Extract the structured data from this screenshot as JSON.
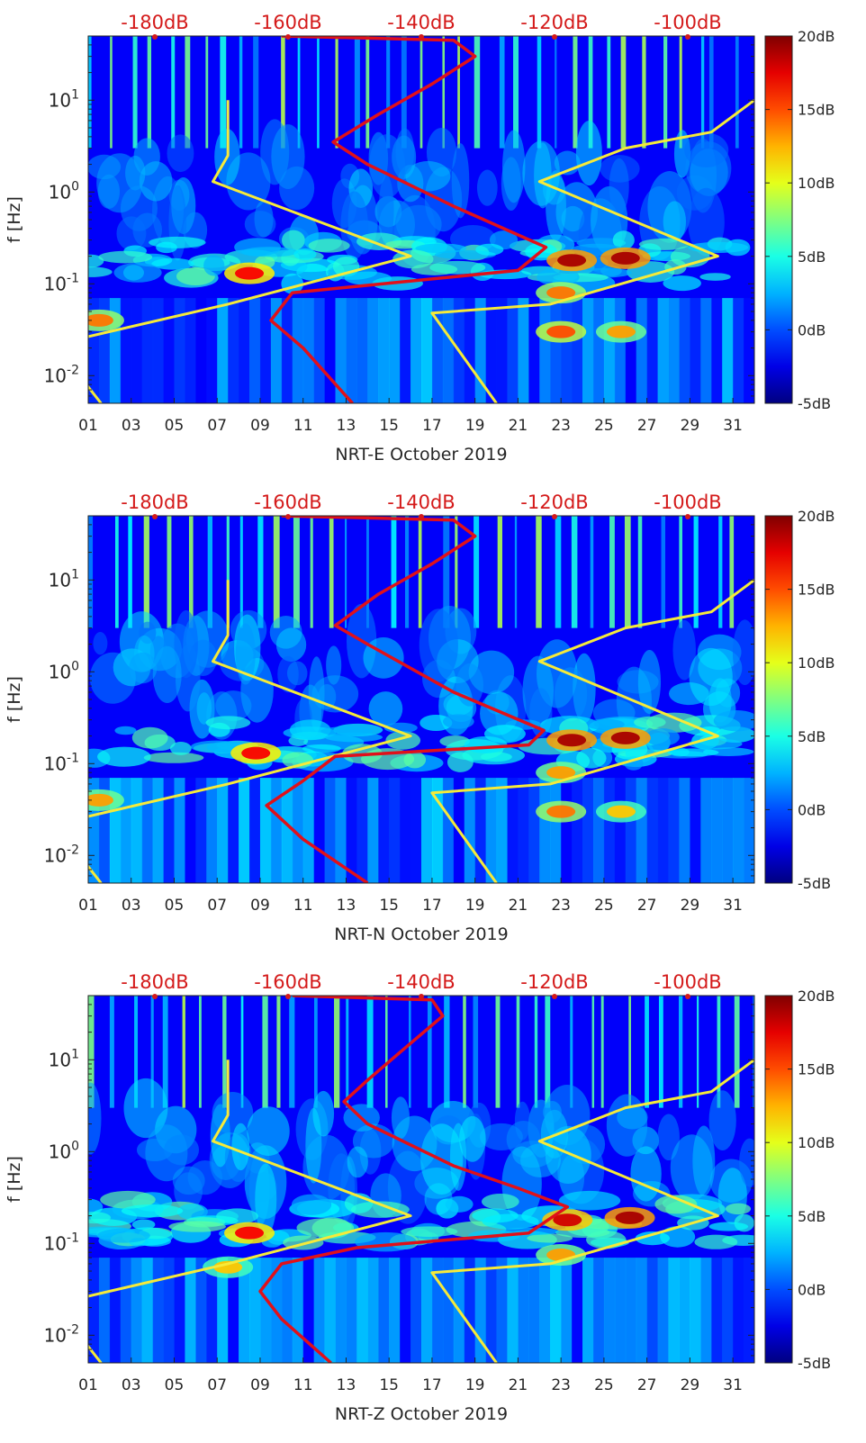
{
  "chart_data": [
    {
      "type": "heatmap",
      "subtype": "spectrogram",
      "title": "",
      "station": "NRT-E",
      "xlabel": "NRT-E October 2019",
      "ylabel": "f [Hz]",
      "xlim": [
        1,
        32
      ],
      "x_ticks": [
        "01",
        "03",
        "05",
        "07",
        "09",
        "11",
        "13",
        "15",
        "17",
        "19",
        "21",
        "23",
        "25",
        "27",
        "29",
        "31"
      ],
      "ylim": [
        0.005,
        50
      ],
      "y_scale": "log",
      "y_ticks": [
        {
          "value": 0.01,
          "base": "10",
          "exp": "-2"
        },
        {
          "value": 0.1,
          "base": "10",
          "exp": "-1"
        },
        {
          "value": 1,
          "base": "10",
          "exp": "0"
        },
        {
          "value": 10,
          "base": "10",
          "exp": "1"
        }
      ],
      "top_axis": {
        "values": [
          -180,
          -160,
          -140,
          -120,
          -100
        ],
        "labels": [
          "-180dB",
          "-160dB",
          "-140dB",
          "-120dB",
          "-100dB"
        ]
      },
      "colorbar": {
        "min": -5,
        "max": 20,
        "ticks": [
          "20dB",
          "15dB",
          "10dB",
          "5dB",
          "0dB",
          "-5dB"
        ],
        "colormap": "jet"
      },
      "hot_spots": [
        {
          "day": 8.5,
          "f": 0.13,
          "level": 17
        },
        {
          "day": 23.5,
          "f": 0.18,
          "level": 19
        },
        {
          "day": 26,
          "f": 0.19,
          "level": 19
        },
        {
          "day": 23,
          "f": 0.08,
          "level": 14
        },
        {
          "day": 1.5,
          "f": 0.04,
          "level": 14
        },
        {
          "day": 23,
          "f": 0.03,
          "level": 15
        },
        {
          "day": 25.8,
          "f": 0.03,
          "level": 13
        }
      ],
      "series": [
        {
          "name": "noise model (yellow)",
          "color": "#f5ea3a",
          "points": [
            [
              1.6,
              0.005
            ],
            [
              0,
              0.015
            ],
            [
              0.5,
              0.025
            ],
            [
              7.5,
              0.06
            ],
            [
              16,
              0.2
            ],
            [
              6.8,
              1.3
            ],
            [
              7.5,
              2.5
            ],
            [
              7.5,
              10
            ]
          ]
        },
        {
          "name": "noise model (yellow)",
          "color": "#f5ea3a",
          "points": [
            [
              20,
              0.005
            ],
            [
              17,
              0.048
            ],
            [
              22.5,
              0.06
            ],
            [
              30.3,
              0.2
            ],
            [
              22,
              1.3
            ],
            [
              26,
              3
            ],
            [
              30,
              4.5
            ],
            [
              32,
              10
            ]
          ]
        },
        {
          "name": "PSD (red)",
          "color": "#e0101a",
          "points": [
            [
              13.3,
              0.005
            ],
            [
              11,
              0.02
            ],
            [
              9.5,
              0.04
            ],
            [
              10.5,
              0.08
            ],
            [
              21,
              0.14
            ],
            [
              22.3,
              0.25
            ],
            [
              18,
              0.7
            ],
            [
              14,
              2
            ],
            [
              12.4,
              3.5
            ],
            [
              14.5,
              7
            ],
            [
              17,
              15
            ],
            [
              19,
              30
            ],
            [
              18,
              45
            ],
            [
              10,
              50
            ]
          ]
        }
      ]
    },
    {
      "type": "heatmap",
      "subtype": "spectrogram",
      "title": "",
      "station": "NRT-N",
      "xlabel": "NRT-N October 2019",
      "ylabel": "f [Hz]",
      "xlim": [
        1,
        32
      ],
      "x_ticks": [
        "01",
        "03",
        "05",
        "07",
        "09",
        "11",
        "13",
        "15",
        "17",
        "19",
        "21",
        "23",
        "25",
        "27",
        "29",
        "31"
      ],
      "ylim": [
        0.005,
        50
      ],
      "y_scale": "log",
      "y_ticks": [
        {
          "value": 0.01,
          "base": "10",
          "exp": "-2"
        },
        {
          "value": 0.1,
          "base": "10",
          "exp": "-1"
        },
        {
          "value": 1,
          "base": "10",
          "exp": "0"
        },
        {
          "value": 10,
          "base": "10",
          "exp": "1"
        }
      ],
      "top_axis": {
        "values": [
          -180,
          -160,
          -140,
          -120,
          -100
        ],
        "labels": [
          "-180dB",
          "-160dB",
          "-140dB",
          "-120dB",
          "-100dB"
        ]
      },
      "colorbar": {
        "min": -5,
        "max": 20,
        "ticks": [
          "20dB",
          "15dB",
          "10dB",
          "5dB",
          "0dB",
          "-5dB"
        ],
        "colormap": "jet"
      },
      "hot_spots": [
        {
          "day": 8.8,
          "f": 0.13,
          "level": 17
        },
        {
          "day": 23.5,
          "f": 0.18,
          "level": 19
        },
        {
          "day": 26,
          "f": 0.19,
          "level": 19
        },
        {
          "day": 23,
          "f": 0.08,
          "level": 13
        },
        {
          "day": 1.5,
          "f": 0.04,
          "level": 13
        },
        {
          "day": 23,
          "f": 0.03,
          "level": 14
        },
        {
          "day": 25.8,
          "f": 0.03,
          "level": 12
        }
      ],
      "series": [
        {
          "name": "noise model (yellow)",
          "color": "#f5ea3a",
          "points": [
            [
              1.6,
              0.005
            ],
            [
              0,
              0.015
            ],
            [
              0.5,
              0.025
            ],
            [
              7.5,
              0.06
            ],
            [
              16,
              0.2
            ],
            [
              6.8,
              1.3
            ],
            [
              7.5,
              2.5
            ],
            [
              7.5,
              10
            ]
          ]
        },
        {
          "name": "noise model (yellow)",
          "color": "#f5ea3a",
          "points": [
            [
              20,
              0.005
            ],
            [
              17,
              0.048
            ],
            [
              22.5,
              0.06
            ],
            [
              30.3,
              0.2
            ],
            [
              22,
              1.3
            ],
            [
              26,
              3
            ],
            [
              30,
              4.5
            ],
            [
              32,
              10
            ]
          ]
        },
        {
          "name": "PSD (red)",
          "color": "#e0101a",
          "points": [
            [
              14,
              0.005
            ],
            [
              11,
              0.015
            ],
            [
              9.3,
              0.035
            ],
            [
              11,
              0.065
            ],
            [
              12.5,
              0.12
            ],
            [
              21.5,
              0.16
            ],
            [
              22.2,
              0.23
            ],
            [
              18,
              0.6
            ],
            [
              14,
              2
            ],
            [
              12.5,
              3.2
            ],
            [
              14.5,
              7
            ],
            [
              17,
              15
            ],
            [
              19,
              30
            ],
            [
              18,
              45
            ],
            [
              10,
              50
            ]
          ]
        }
      ]
    },
    {
      "type": "heatmap",
      "subtype": "spectrogram",
      "title": "",
      "station": "NRT-Z",
      "xlabel": "NRT-Z October 2019",
      "ylabel": "f [Hz]",
      "xlim": [
        1,
        32
      ],
      "x_ticks": [
        "01",
        "03",
        "05",
        "07",
        "09",
        "11",
        "13",
        "15",
        "17",
        "19",
        "21",
        "23",
        "25",
        "27",
        "29",
        "31"
      ],
      "ylim": [
        0.005,
        50
      ],
      "y_scale": "log",
      "y_ticks": [
        {
          "value": 0.01,
          "base": "10",
          "exp": "-2"
        },
        {
          "value": 0.1,
          "base": "10",
          "exp": "-1"
        },
        {
          "value": 1,
          "base": "10",
          "exp": "0"
        },
        {
          "value": 10,
          "base": "10",
          "exp": "1"
        }
      ],
      "top_axis": {
        "values": [
          -180,
          -160,
          -140,
          -120,
          -100
        ],
        "labels": [
          "-180dB",
          "-160dB",
          "-140dB",
          "-120dB",
          "-100dB"
        ]
      },
      "colorbar": {
        "min": -5,
        "max": 20,
        "ticks": [
          "20dB",
          "15dB",
          "10dB",
          "5dB",
          "0dB",
          "-5dB"
        ],
        "colormap": "jet"
      },
      "hot_spots": [
        {
          "day": 8.5,
          "f": 0.13,
          "level": 17
        },
        {
          "day": 23.3,
          "f": 0.18,
          "level": 18
        },
        {
          "day": 26.2,
          "f": 0.19,
          "level": 19
        },
        {
          "day": 23,
          "f": 0.075,
          "level": 13
        },
        {
          "day": 7.5,
          "f": 0.055,
          "level": 12
        }
      ],
      "series": [
        {
          "name": "noise model (yellow)",
          "color": "#f5ea3a",
          "points": [
            [
              1.6,
              0.005
            ],
            [
              0,
              0.015
            ],
            [
              0.5,
              0.025
            ],
            [
              7.5,
              0.06
            ],
            [
              16,
              0.2
            ],
            [
              6.8,
              1.3
            ],
            [
              7.5,
              2.5
            ],
            [
              7.5,
              10
            ]
          ]
        },
        {
          "name": "noise model (yellow)",
          "color": "#f5ea3a",
          "points": [
            [
              20,
              0.005
            ],
            [
              17,
              0.048
            ],
            [
              22.5,
              0.06
            ],
            [
              30.3,
              0.2
            ],
            [
              22,
              1.3
            ],
            [
              26,
              3
            ],
            [
              30,
              4.5
            ],
            [
              32,
              10
            ]
          ]
        },
        {
          "name": "PSD (red)",
          "color": "#e0101a",
          "points": [
            [
              12.3,
              0.005
            ],
            [
              10,
              0.015
            ],
            [
              9,
              0.03
            ],
            [
              10,
              0.06
            ],
            [
              13.5,
              0.09
            ],
            [
              21.5,
              0.13
            ],
            [
              23.3,
              0.25
            ],
            [
              21,
              0.4
            ],
            [
              18,
              0.7
            ],
            [
              14,
              2
            ],
            [
              12.9,
              3.5
            ],
            [
              14,
              6
            ],
            [
              15.5,
              12
            ],
            [
              17.5,
              30
            ],
            [
              17,
              45
            ],
            [
              10.5,
              50
            ]
          ]
        }
      ]
    }
  ]
}
